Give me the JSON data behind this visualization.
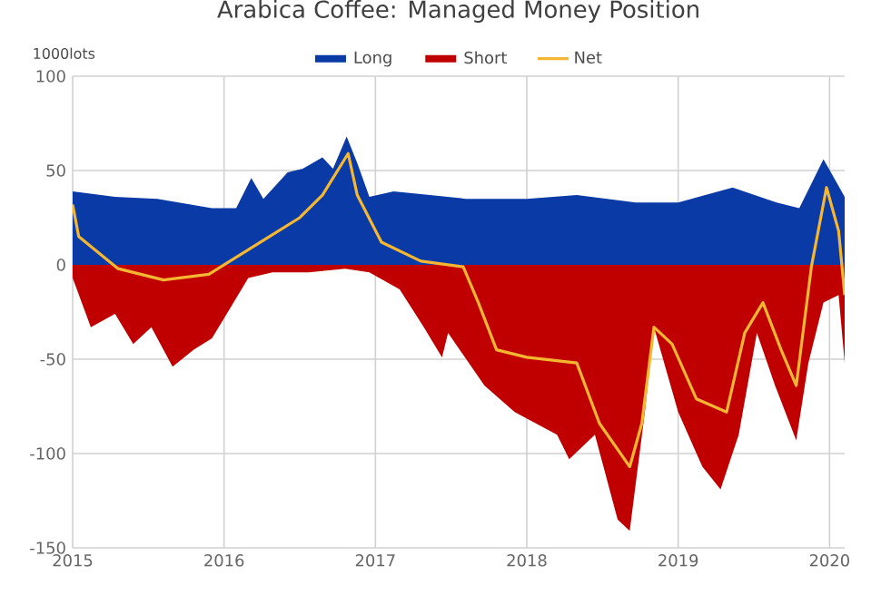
{
  "chart_data": {
    "type": "area",
    "title": "Arabica Coffee: Managed Money Position",
    "ylabel": "1000lots",
    "xlim": [
      2015,
      2020.1
    ],
    "xticks": [
      2015,
      2016,
      2017,
      2018,
      2019,
      2020
    ],
    "ylim": [
      -150,
      100
    ],
    "yticks": [
      -150,
      -100,
      -50,
      0,
      50,
      100
    ],
    "grid": true,
    "legend": "top",
    "series": [
      {
        "name": "Long",
        "color": "#0a3aa6",
        "x": [
          2015.0,
          2015.28,
          2015.56,
          2015.92,
          2016.08,
          2016.18,
          2016.26,
          2016.42,
          2016.52,
          2016.65,
          2016.72,
          2016.81,
          2016.88,
          2016.96,
          2017.12,
          2017.36,
          2017.6,
          2018.0,
          2018.33,
          2018.72,
          2019.0,
          2019.36,
          2019.65,
          2019.8,
          2019.96,
          2020.1
        ],
        "values": [
          39,
          36,
          35,
          30,
          30,
          46,
          35,
          49,
          51,
          57,
          51,
          68,
          54,
          36,
          39,
          37,
          35,
          35,
          37,
          33,
          33,
          41,
          33,
          30,
          56,
          36
        ]
      },
      {
        "name": "Short",
        "color": "#c00000",
        "x": [
          2015.0,
          2015.12,
          2015.28,
          2015.4,
          2015.52,
          2015.66,
          2015.8,
          2015.92,
          2016.04,
          2016.16,
          2016.32,
          2016.56,
          2016.8,
          2016.96,
          2017.16,
          2017.32,
          2017.44,
          2017.48,
          2017.72,
          2017.92,
          2018.2,
          2018.28,
          2018.45,
          2018.6,
          2018.68,
          2018.78,
          2018.84,
          2019.0,
          2019.16,
          2019.28,
          2019.4,
          2019.52,
          2019.64,
          2019.78,
          2019.86,
          2019.96,
          2020.06,
          2020.1
        ],
        "values": [
          -7,
          -33,
          -26,
          -42,
          -33,
          -54,
          -45,
          -39,
          -23,
          -7,
          -4,
          -4,
          -2,
          -4,
          -13,
          -33,
          -49,
          -36,
          -64,
          -78,
          -90,
          -103,
          -90,
          -135,
          -141,
          -78,
          -33,
          -78,
          -107,
          -119,
          -90,
          -36,
          -64,
          -93,
          -52,
          -20,
          -16,
          -52
        ]
      },
      {
        "name": "Net",
        "color": "#f5b731",
        "type": "line",
        "x": [
          2015.0,
          2015.04,
          2015.3,
          2015.6,
          2015.9,
          2016.2,
          2016.5,
          2016.65,
          2016.82,
          2016.88,
          2017.04,
          2017.3,
          2017.58,
          2017.68,
          2017.8,
          2018.0,
          2018.33,
          2018.48,
          2018.68,
          2018.76,
          2018.84,
          2018.96,
          2019.12,
          2019.32,
          2019.44,
          2019.56,
          2019.68,
          2019.78,
          2019.88,
          2019.98,
          2020.06,
          2020.1
        ],
        "values": [
          32,
          15,
          -2,
          -8,
          -5,
          10,
          25,
          37,
          59,
          37,
          12,
          2,
          -1,
          -20,
          -45,
          -49,
          -52,
          -84,
          -107,
          -84,
          -33,
          -42,
          -71,
          -78,
          -36,
          -20,
          -45,
          -64,
          -1,
          41,
          18,
          -16
        ]
      }
    ]
  }
}
